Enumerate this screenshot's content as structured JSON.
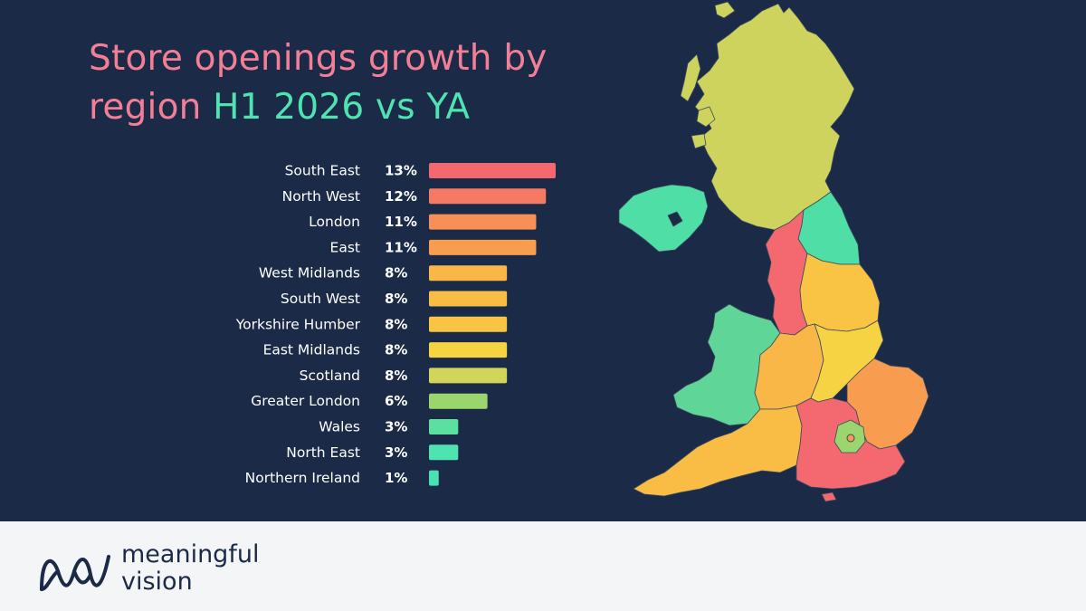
{
  "title": {
    "line1": "Store openings growth by",
    "line2_pre": "region ",
    "line2_highlight": "H1 2026 vs YA"
  },
  "brand": {
    "line1": "meaningful",
    "line2": "vision",
    "logo_icon": "meaningful-vision-logo-icon"
  },
  "colors": {
    "background": "#1b2a47",
    "title": "#f27f95",
    "highlight": "#4fe3b2",
    "footer": "#f4f5f6"
  },
  "chart_data": {
    "type": "bar",
    "orientation": "horizontal",
    "title": "Store openings growth by region H1 2026 vs YA",
    "unit": "%",
    "categories": [
      "South East",
      "North West",
      "London",
      "East",
      "West Midlands",
      "South West",
      "Yorkshire Humber",
      "East Midlands",
      "Scotland",
      "Greater London",
      "Wales",
      "North East",
      "Northern Ireland"
    ],
    "values": [
      13,
      12,
      11,
      11,
      8,
      8,
      8,
      8,
      8,
      6,
      3,
      3,
      1
    ],
    "value_labels": [
      "13%",
      "12%",
      "11%",
      "11%",
      "8%",
      "8%",
      "8%",
      "8%",
      "8%",
      "6%",
      "3%",
      "3%",
      "1%"
    ],
    "colors": [
      "#f4686f",
      "#f67a63",
      "#f78f57",
      "#f89c50",
      "#f9b748",
      "#f9bd45",
      "#f9c444",
      "#f6d343",
      "#d3d55a",
      "#9ad66d",
      "#5be0a0",
      "#4fe3b2",
      "#49e0b6"
    ],
    "xlim": [
      0,
      13
    ],
    "grid": false,
    "legend": "none"
  },
  "map": {
    "regions": [
      {
        "name": "Scotland",
        "color": "#cdd35c"
      },
      {
        "name": "Northern Ireland",
        "color": "#4fdfa6"
      },
      {
        "name": "North East",
        "color": "#4fdfa6"
      },
      {
        "name": "North West",
        "color": "#f4686f"
      },
      {
        "name": "Yorkshire Humber",
        "color": "#f9c444"
      },
      {
        "name": "Wales",
        "color": "#5fd697"
      },
      {
        "name": "West Midlands",
        "color": "#f9b748"
      },
      {
        "name": "East Midlands",
        "color": "#f6d343"
      },
      {
        "name": "East",
        "color": "#f89c50"
      },
      {
        "name": "South West",
        "color": "#f9bd45"
      },
      {
        "name": "South East",
        "color": "#f4686f"
      },
      {
        "name": "Greater London",
        "color": "#9ad66d"
      }
    ]
  }
}
